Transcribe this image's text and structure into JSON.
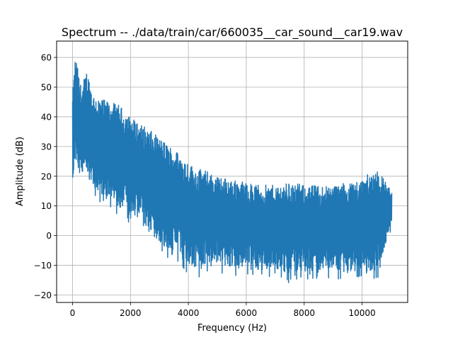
{
  "chart_data": {
    "type": "line",
    "title": "Spectrum -- ./data/train/car/660035__car_sound__car19.wav",
    "xlabel": "Frequency (Hz)",
    "ylabel": "Amplitude (dB)",
    "xlim": [
      -550,
      11575
    ],
    "ylim": [
      -22.5,
      65.5
    ],
    "xticks": [
      0,
      2000,
      4000,
      6000,
      8000,
      10000
    ],
    "yticks": [
      -20,
      -10,
      0,
      10,
      20,
      30,
      40,
      50,
      60
    ],
    "grid": true,
    "line_color": "#1f77b4",
    "series": [
      {
        "x": [
          0,
          100,
          200,
          300,
          500,
          700,
          1000,
          1300,
          1600,
          2000,
          2300,
          2600,
          3000,
          3400,
          3800,
          4200,
          4600,
          5000,
          5500,
          6000,
          6500,
          7000,
          7500,
          8000,
          8500,
          9000,
          9500,
          10000,
          10500,
          11025
        ],
        "upper": [
          48,
          61,
          55,
          50,
          56,
          48,
          46,
          45,
          44,
          40,
          38,
          36,
          33,
          30,
          27,
          23,
          22,
          20,
          19,
          18,
          17,
          17,
          18,
          17,
          17,
          17,
          18,
          19,
          23,
          15
        ],
        "lower": [
          12,
          22,
          18,
          17,
          16,
          14,
          10,
          8,
          6,
          4,
          2,
          -2,
          -6,
          -9,
          -11,
          -15,
          -13,
          -13,
          -14,
          -13,
          -15,
          -14,
          -16,
          -15,
          -16,
          -14,
          -16,
          -14,
          -16,
          2
        ]
      }
    ]
  }
}
